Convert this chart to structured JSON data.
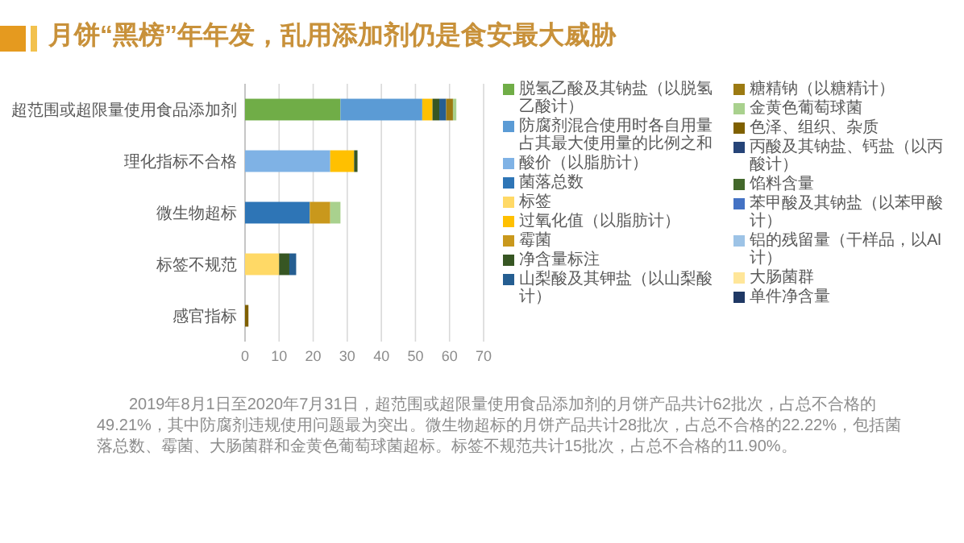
{
  "chart_data": {
    "type": "bar",
    "orientation": "horizontal",
    "stacked": true,
    "title": "月饼“黑榜”年年发，乱用添加剂仍是食安最大威胁",
    "categories": [
      "超范围或超限量使用食品添加剂",
      "理化指标不合格",
      "微生物超标",
      "标签不规范",
      "感官指标"
    ],
    "series": [
      {
        "name": "脱氢乙酸及其钠盐（以脱氢乙酸计）",
        "color": "#70ad47",
        "values": [
          28,
          0,
          0,
          0,
          0
        ]
      },
      {
        "name": "防腐剂混合使用时各自用量占其最大使用量的比例之和",
        "color": "#5b9bd5",
        "values": [
          24,
          0,
          0,
          0,
          0
        ]
      },
      {
        "name": "酸价（以脂肪计）",
        "color": "#7fb2e5",
        "values": [
          0,
          25,
          0,
          0,
          0
        ]
      },
      {
        "name": "菌落总数",
        "color": "#2e75b6",
        "values": [
          0,
          0,
          19,
          0,
          0
        ]
      },
      {
        "name": "标签",
        "color": "#ffd966",
        "values": [
          0,
          0,
          0,
          10,
          0
        ]
      },
      {
        "name": "过氧化值（以脂肪计）",
        "color": "#ffc000",
        "values": [
          3,
          7,
          0,
          0,
          0
        ]
      },
      {
        "name": "霉菌",
        "color": "#c9981c",
        "values": [
          0,
          0,
          6,
          0,
          0
        ]
      },
      {
        "name": "净含量标注",
        "color": "#375623",
        "values": [
          2,
          1,
          0,
          3,
          0
        ]
      },
      {
        "name": "山梨酸及其钾盐（以山梨酸计）",
        "color": "#255e91",
        "values": [
          2,
          0,
          0,
          2,
          0
        ]
      },
      {
        "name": "糖精钠（以糖精计）",
        "color": "#9c7a12",
        "values": [
          2,
          0,
          0,
          0,
          0
        ]
      },
      {
        "name": "金黄色葡萄球菌",
        "color": "#a9d18e",
        "values": [
          1,
          0,
          3,
          0,
          0
        ]
      },
      {
        "name": "色泽、组织、杂质",
        "color": "#7f6000",
        "values": [
          0,
          0,
          0,
          0,
          1
        ]
      },
      {
        "name": "丙酸及其钠盐、钙盐（以丙酸计）",
        "color": "#264478",
        "values": [
          0,
          0,
          0,
          0,
          0
        ]
      },
      {
        "name": "馅料含量",
        "color": "#43682b",
        "values": [
          0,
          0,
          0,
          0,
          0
        ]
      },
      {
        "name": "苯甲酸及其钠盐（以苯甲酸计）",
        "color": "#4472c4",
        "values": [
          0,
          0,
          0,
          0,
          0
        ]
      },
      {
        "name": "铝的残留量（干样品，以Al计）",
        "color": "#9dc3e6",
        "values": [
          0,
          0,
          0,
          0,
          0
        ]
      },
      {
        "name": "大肠菌群",
        "color": "#ffe699",
        "values": [
          0,
          0,
          0,
          0,
          0
        ]
      },
      {
        "name": "单件净含量",
        "color": "#1f3864",
        "values": [
          0,
          0,
          0,
          0,
          0
        ]
      }
    ],
    "xlim": [
      0,
      70
    ],
    "xticks": [
      0,
      10,
      20,
      30,
      40,
      50,
      60,
      70
    ],
    "grid": "x",
    "legend": "right",
    "annotations": [
      "2019年8月1日至2020年7月31日，超范围或超限量使用食品添加剂的月饼产品共计62批次，占总不合格的49.21%，其中防腐剂违规使用问题最为突出。微生物超标的月饼产品共计28批次，占总不合格的22.22%，包括菌落总数、霉菌、大肠菌群和金黄色葡萄球菌超标。标签不规范共计15批次，占总不合格的11.90%。"
    ]
  }
}
